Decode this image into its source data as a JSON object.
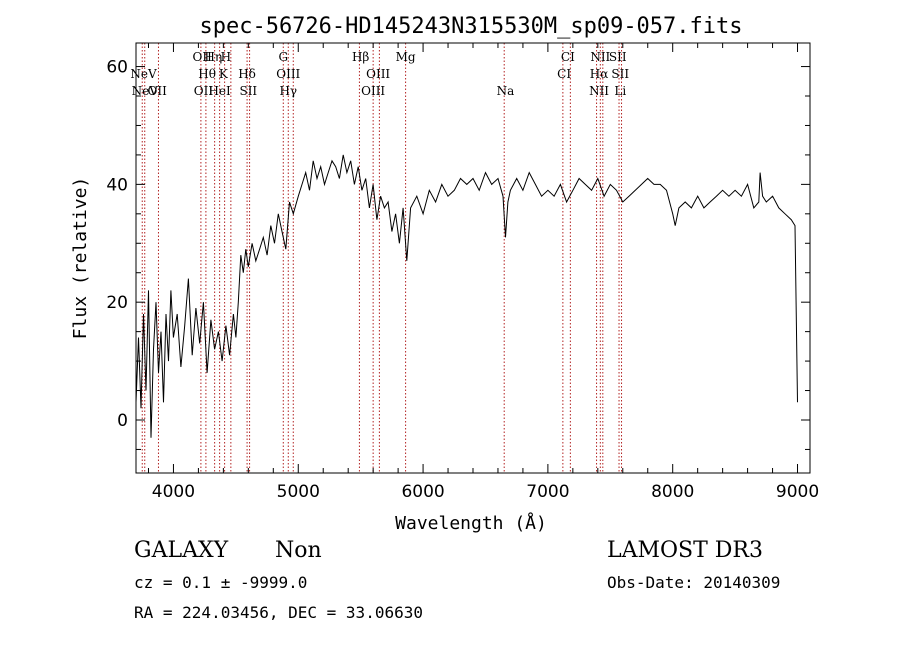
{
  "chart_data": {
    "type": "line",
    "title": "spec-56726-HD145243N315530M_sp09-057.fits",
    "xlabel": "Wavelength (Å)",
    "ylabel": "Flux (relative)",
    "xlim": [
      3700,
      9100
    ],
    "ylim": [
      -9,
      64
    ],
    "xticks": [
      4000,
      5000,
      6000,
      7000,
      8000,
      9000
    ],
    "yticks": [
      0,
      20,
      40,
      60
    ],
    "grid": false,
    "line_color": "#000000",
    "marker_color": "#b22222",
    "series": [
      {
        "x": [
          3700,
          3720,
          3740,
          3760,
          3780,
          3800,
          3820,
          3840,
          3860,
          3880,
          3900,
          3920,
          3940,
          3960,
          3980,
          4000,
          4030,
          4060,
          4090,
          4120,
          4150,
          4180,
          4210,
          4240,
          4270,
          4300,
          4330,
          4360,
          4390,
          4420,
          4450,
          4480,
          4500,
          4520,
          4540,
          4560,
          4580,
          4600,
          4630,
          4660,
          4690,
          4720,
          4750,
          4780,
          4810,
          4840,
          4870,
          4900,
          4930,
          4960,
          5000,
          5030,
          5060,
          5090,
          5120,
          5150,
          5180,
          5210,
          5240,
          5270,
          5300,
          5330,
          5360,
          5390,
          5420,
          5450,
          5480,
          5510,
          5540,
          5570,
          5600,
          5630,
          5660,
          5690,
          5720,
          5750,
          5780,
          5810,
          5840,
          5870,
          5900,
          5950,
          6000,
          6050,
          6100,
          6150,
          6200,
          6250,
          6300,
          6350,
          6400,
          6450,
          6500,
          6550,
          6600,
          6640,
          6660,
          6680,
          6700,
          6750,
          6800,
          6850,
          6900,
          6950,
          7000,
          7050,
          7100,
          7150,
          7200,
          7250,
          7300,
          7350,
          7400,
          7450,
          7500,
          7550,
          7600,
          7650,
          7700,
          7750,
          7800,
          7850,
          7900,
          7950,
          8000,
          8020,
          8050,
          8100,
          8150,
          8200,
          8250,
          8300,
          8350,
          8400,
          8450,
          8500,
          8550,
          8600,
          8650,
          8690,
          8700,
          8720,
          8750,
          8800,
          8850,
          8900,
          8950,
          8980,
          9000
        ],
        "values": [
          3,
          14,
          2,
          18,
          5,
          22,
          -3,
          12,
          20,
          8,
          15,
          3,
          18,
          10,
          22,
          14,
          18,
          9,
          16,
          24,
          11,
          19,
          13,
          20,
          8,
          17,
          12,
          15,
          10,
          16,
          11,
          18,
          14,
          20,
          28,
          25,
          29,
          26,
          30,
          27,
          29,
          31,
          28,
          33,
          30,
          35,
          32,
          29,
          37,
          35,
          38,
          40,
          42,
          39,
          44,
          41,
          43,
          40,
          42,
          44,
          43,
          41,
          45,
          42,
          44,
          40,
          43,
          39,
          41,
          36,
          40,
          34,
          38,
          36,
          37,
          32,
          35,
          30,
          36,
          27,
          36,
          38,
          35,
          39,
          37,
          40,
          38,
          39,
          41,
          40,
          41,
          39,
          42,
          40,
          41,
          38,
          31,
          37,
          39,
          41,
          39,
          42,
          40,
          38,
          39,
          38,
          40,
          37,
          39,
          41,
          40,
          39,
          41,
          38,
          40,
          39,
          37,
          38,
          39,
          40,
          41,
          40,
          40,
          39,
          35,
          33,
          36,
          37,
          36,
          38,
          36,
          37,
          38,
          39,
          38,
          39,
          38,
          40,
          36,
          37,
          42,
          38,
          37,
          38,
          36,
          35,
          34,
          33,
          3
        ]
      }
    ],
    "line_markers": [
      {
        "label": "NeV",
        "x": 3760,
        "row": 1
      },
      {
        "label": "NeV",
        "x": 3770,
        "row": 2
      },
      {
        "label": "OII",
        "x": 3870,
        "row": 2
      },
      {
        "label": "OII",
        "x": 4230,
        "row": 0
      },
      {
        "label": "Hη",
        "x": 4320,
        "row": 0
      },
      {
        "label": "H",
        "x": 4420,
        "row": 0
      },
      {
        "label": "Hθ",
        "x": 4270,
        "row": 1
      },
      {
        "label": "K",
        "x": 4400,
        "row": 1
      },
      {
        "label": "OII",
        "x": 4240,
        "row": 2
      },
      {
        "label": "HeI",
        "x": 4370,
        "row": 2
      },
      {
        "label": "Hδ",
        "x": 4590,
        "row": 1
      },
      {
        "label": "SII",
        "x": 4600,
        "row": 2
      },
      {
        "label": "G",
        "x": 4880,
        "row": 0
      },
      {
        "label": "OIII",
        "x": 4920,
        "row": 1
      },
      {
        "label": "Hγ",
        "x": 4920,
        "row": 2
      },
      {
        "label": "Hβ",
        "x": 5500,
        "row": 0
      },
      {
        "label": "OIII",
        "x": 5640,
        "row": 1
      },
      {
        "label": "OIII",
        "x": 5600,
        "row": 2
      },
      {
        "label": "Mg",
        "x": 5860,
        "row": 0
      },
      {
        "label": "Na",
        "x": 6660,
        "row": 2
      },
      {
        "label": "CI",
        "x": 7160,
        "row": 0
      },
      {
        "label": "CI",
        "x": 7130,
        "row": 1
      },
      {
        "label": "NII",
        "x": 7420,
        "row": 0
      },
      {
        "label": "SII",
        "x": 7560,
        "row": 0
      },
      {
        "label": "Hα",
        "x": 7410,
        "row": 1
      },
      {
        "label": "SII",
        "x": 7580,
        "row": 1
      },
      {
        "label": "NII",
        "x": 7410,
        "row": 2
      },
      {
        "label": "Li",
        "x": 7580,
        "row": 2
      }
    ],
    "marker_lines_x": [
      3750,
      3770,
      3880,
      4220,
      4260,
      4330,
      4370,
      4410,
      4460,
      4590,
      4610,
      4880,
      4920,
      4960,
      5490,
      5600,
      5650,
      5860,
      6650,
      7120,
      7180,
      7390,
      7420,
      7440,
      7570,
      7590
    ]
  },
  "info": {
    "class_label": "GALAXY",
    "subclass_label": "Non",
    "cz_text": "cz = 0.1 ± -9999.0",
    "radec_text": "RA = 224.03456, DEC =  33.06630",
    "survey": "LAMOST DR3",
    "obs_date": "Obs-Date: 20140309"
  }
}
